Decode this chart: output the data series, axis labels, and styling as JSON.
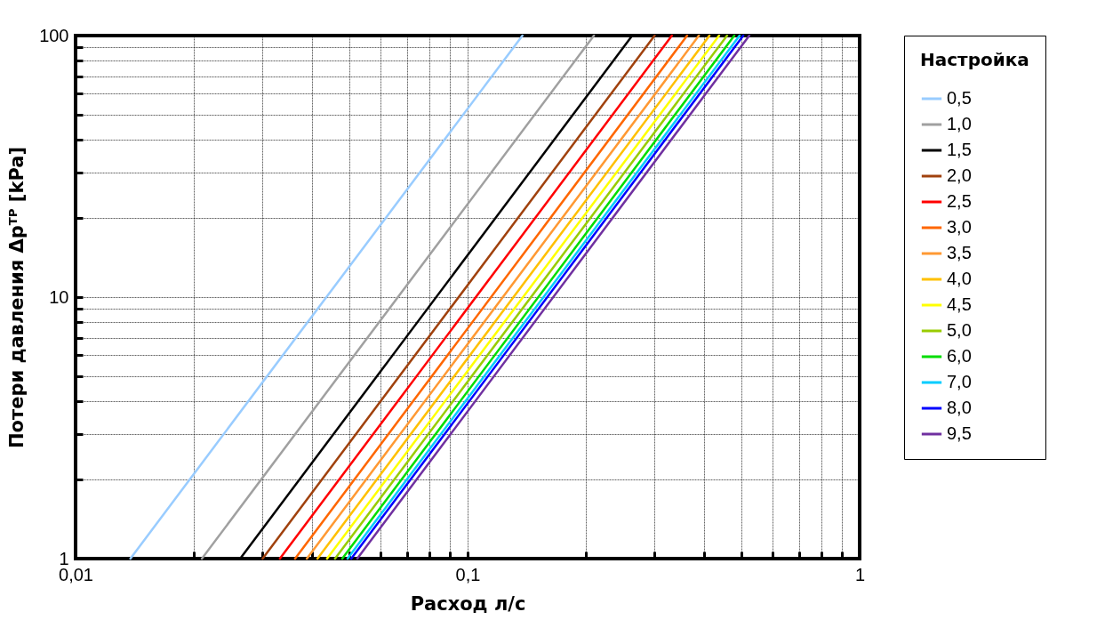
{
  "chart_data": {
    "type": "line",
    "xlabel": "Расход л/с",
    "ylabel": "Потери давления Δpᵀᴾ [kPa]",
    "legend_title": "Настройка",
    "log": "xy",
    "grid": true,
    "legend": "right",
    "marker": "none",
    "line_style": "solid",
    "xlim": [
      0.01,
      1
    ],
    "ylim": [
      1,
      100
    ],
    "xticks": [
      {
        "value": 0.01,
        "label": "0,01"
      },
      {
        "value": 0.02,
        "label": null
      },
      {
        "value": 0.03,
        "label": null
      },
      {
        "value": 0.04,
        "label": null
      },
      {
        "value": 0.05,
        "label": null
      },
      {
        "value": 0.06,
        "label": null
      },
      {
        "value": 0.07,
        "label": null
      },
      {
        "value": 0.08,
        "label": null
      },
      {
        "value": 0.09,
        "label": null
      },
      {
        "value": 0.1,
        "label": "0,1"
      },
      {
        "value": 0.2,
        "label": null
      },
      {
        "value": 0.3,
        "label": null
      },
      {
        "value": 0.4,
        "label": null
      },
      {
        "value": 0.5,
        "label": null
      },
      {
        "value": 0.6,
        "label": null
      },
      {
        "value": 0.7,
        "label": null
      },
      {
        "value": 0.8,
        "label": null
      },
      {
        "value": 0.9,
        "label": null
      },
      1
    ],
    "yticks": [
      1,
      {
        "value": 2,
        "label": null
      },
      {
        "value": 3,
        "label": null
      },
      {
        "value": 4,
        "label": null
      },
      {
        "value": 5,
        "label": null
      },
      {
        "value": 6,
        "label": null
      },
      {
        "value": 7,
        "label": null
      },
      {
        "value": 8,
        "label": null
      },
      {
        "value": 9,
        "label": null
      },
      10,
      {
        "value": 20,
        "label": null
      },
      {
        "value": 30,
        "label": null
      },
      {
        "value": 40,
        "label": null
      },
      {
        "value": 50,
        "label": null
      },
      {
        "value": 60,
        "label": null
      },
      {
        "value": 70,
        "label": null
      },
      {
        "value": 80,
        "label": null
      },
      {
        "value": 90,
        "label": null
      },
      100
    ],
    "series": [
      {
        "name": "0,5",
        "color": "#99ccff",
        "x": [
          0.0138,
          0.138
        ],
        "values": [
          1,
          100
        ]
      },
      {
        "name": "1,0",
        "color": "#a0a0a0",
        "x": [
          0.021,
          0.21
        ],
        "values": [
          1,
          100
        ]
      },
      {
        "name": "1,5",
        "color": "#000000",
        "x": [
          0.0263,
          0.263
        ],
        "values": [
          1,
          100
        ]
      },
      {
        "name": "2,0",
        "color": "#a0410d",
        "x": [
          0.03,
          0.3
        ],
        "values": [
          1,
          100
        ]
      },
      {
        "name": "2,5",
        "color": "#ff0000",
        "x": [
          0.0332,
          0.332
        ],
        "values": [
          1,
          100
        ]
      },
      {
        "name": "3,0",
        "color": "#ff6600",
        "x": [
          0.0363,
          0.363
        ],
        "values": [
          1,
          100
        ]
      },
      {
        "name": "3,5",
        "color": "#ff9933",
        "x": [
          0.0389,
          0.389
        ],
        "values": [
          1,
          100
        ]
      },
      {
        "name": "4,0",
        "color": "#ffc000",
        "x": [
          0.0414,
          0.414
        ],
        "values": [
          1,
          100
        ]
      },
      {
        "name": "4,5",
        "color": "#ffff00",
        "x": [
          0.0438,
          0.438
        ],
        "values": [
          1,
          100
        ]
      },
      {
        "name": "5,0",
        "color": "#99cc00",
        "x": [
          0.0459,
          0.459
        ],
        "values": [
          1,
          100
        ]
      },
      {
        "name": "6,0",
        "color": "#00dd00",
        "x": [
          0.0479,
          0.479
        ],
        "values": [
          1,
          100
        ]
      },
      {
        "name": "7,0",
        "color": "#00ccff",
        "x": [
          0.0494,
          0.494
        ],
        "values": [
          1,
          100
        ]
      },
      {
        "name": "8,0",
        "color": "#0000ff",
        "x": [
          0.0505,
          0.505
        ],
        "values": [
          1,
          100
        ]
      },
      {
        "name": "9,5",
        "color": "#7030a0",
        "x": [
          0.0523,
          0.523
        ],
        "values": [
          1,
          100
        ]
      }
    ]
  }
}
